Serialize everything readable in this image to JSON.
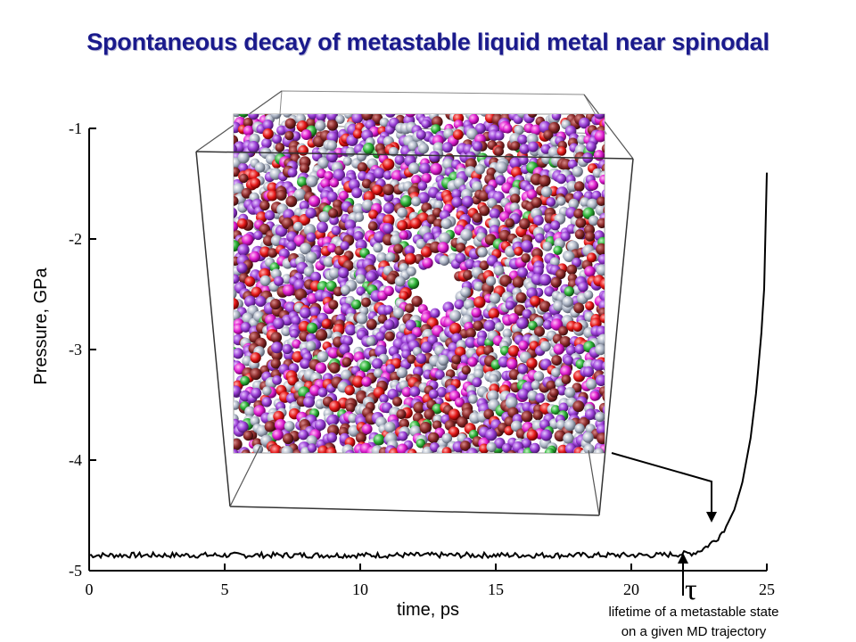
{
  "title": "Spontaneous decay of metastable liquid metal near spinodal",
  "chart_data": {
    "type": "line",
    "title": "Spontaneous decay of metastable liquid metal near spinodal",
    "xlabel": "time, ps",
    "ylabel": "Pressure, GPa",
    "xlim": [
      0,
      25
    ],
    "ylim": [
      -5,
      -1
    ],
    "x_ticks": [
      "0",
      "5",
      "10",
      "15",
      "20",
      "25"
    ],
    "y_ticks": [
      "-1",
      "-2",
      "-3",
      "-4",
      "-5"
    ],
    "grid": false,
    "series": [
      {
        "name": "",
        "x": [
          0,
          2,
          4,
          6,
          8,
          10,
          12,
          14,
          16,
          18,
          20,
          21,
          21.8,
          22.3,
          22.6,
          22.9,
          23.2,
          23.5,
          23.8,
          24.1,
          24.4,
          24.6,
          24.8,
          24.9,
          25.0
        ],
        "y": [
          -4.86,
          -4.86,
          -4.86,
          -4.86,
          -4.86,
          -4.86,
          -4.86,
          -4.86,
          -4.86,
          -4.86,
          -4.86,
          -4.86,
          -4.85,
          -4.84,
          -4.81,
          -4.76,
          -4.7,
          -4.6,
          -4.45,
          -4.2,
          -3.8,
          -3.4,
          -2.85,
          -2.45,
          -1.4
        ]
      }
    ],
    "annotations": {
      "tau_symbol": "τ",
      "tau_x": 22.1,
      "lifetime_label_line1": "lifetime of a metastable state",
      "lifetime_label_line2": "on a given MD trajectory"
    },
    "inset": {
      "description_free": true,
      "particle_colors": [
        "#9b3fd6",
        "#b0b8c8",
        "#8b2a2a",
        "#e61a1a",
        "#e020d0",
        "#2fb43a"
      ]
    }
  }
}
